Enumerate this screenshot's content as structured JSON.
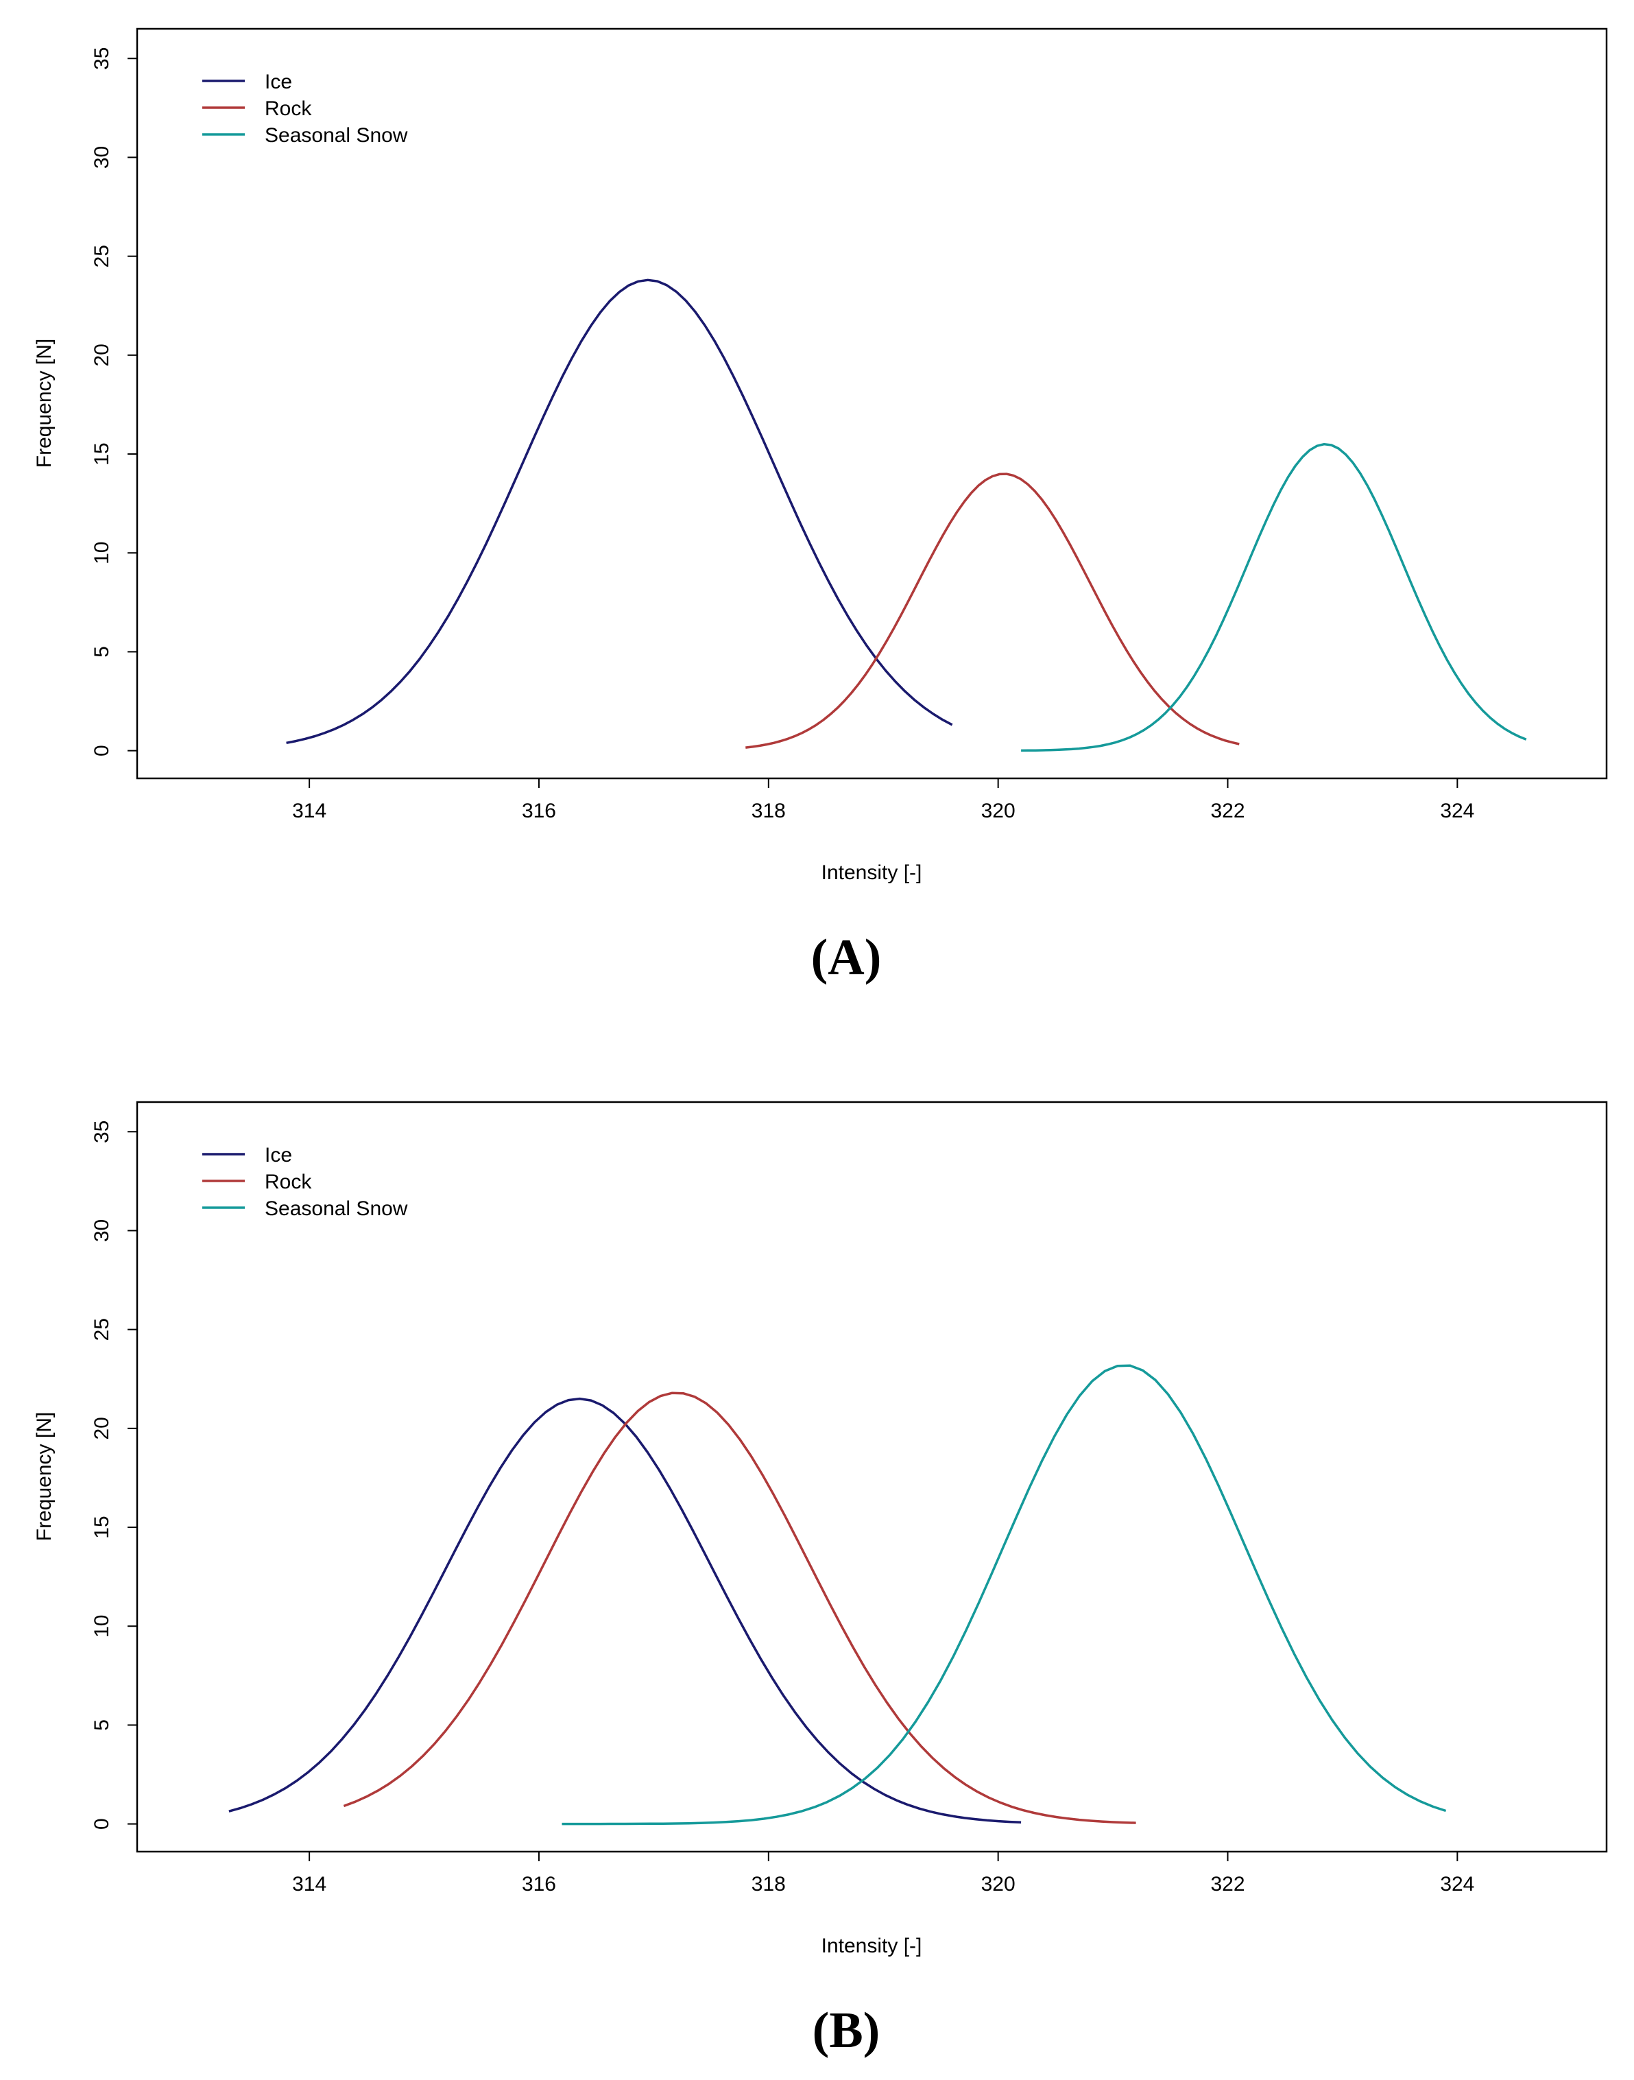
{
  "chart_data": [
    {
      "type": "line",
      "panel_label": "(A)",
      "xlabel": "Intensity [-]",
      "ylabel": "Frequency [N]",
      "xlim": [
        312.5,
        325.3
      ],
      "ylim": [
        -1.4,
        36.5
      ],
      "xticks": [
        314,
        316,
        318,
        320,
        322,
        324
      ],
      "xtick_labels": [
        "314",
        "316",
        "318",
        "320",
        "322",
        "324"
      ],
      "yticks": [
        0,
        5,
        10,
        15,
        20,
        25,
        30,
        35
      ],
      "ytick_labels": [
        "0",
        "5",
        "10",
        "15",
        "20",
        "25",
        "30",
        "35"
      ],
      "legend_position": "top-left",
      "series": [
        {
          "name": "Ice",
          "color": "#1a1a6e",
          "mean": 316.95,
          "sd": 1.1,
          "peak": 23.8,
          "xmin": 313.8,
          "xmax": 319.6
        },
        {
          "name": "Rock",
          "color": "#b03a3a",
          "mean": 320.05,
          "sd": 0.75,
          "peak": 14.0,
          "xmin": 317.8,
          "xmax": 322.1
        },
        {
          "name": "Seasonal Snow",
          "color": "#159a9a",
          "mean": 322.85,
          "sd": 0.68,
          "peak": 15.5,
          "xmin": 320.2,
          "xmax": 324.6
        }
      ]
    },
    {
      "type": "line",
      "panel_label": "(B)",
      "xlabel": "Intensity [-]",
      "ylabel": "Frequency [N]",
      "xlim": [
        312.5,
        325.3
      ],
      "ylim": [
        -1.4,
        36.5
      ],
      "xticks": [
        314,
        316,
        318,
        320,
        322,
        324
      ],
      "xtick_labels": [
        "314",
        "316",
        "318",
        "320",
        "322",
        "324"
      ],
      "yticks": [
        0,
        5,
        10,
        15,
        20,
        25,
        30,
        35
      ],
      "ytick_labels": [
        "0",
        "5",
        "10",
        "15",
        "20",
        "25",
        "30",
        "35"
      ],
      "legend_position": "top-left",
      "series": [
        {
          "name": "Ice",
          "color": "#1a1a6e",
          "mean": 316.35,
          "sd": 1.15,
          "peak": 21.5,
          "xmin": 313.3,
          "xmax": 320.2
        },
        {
          "name": "Rock",
          "color": "#b03a3a",
          "mean": 317.2,
          "sd": 1.15,
          "peak": 21.8,
          "xmin": 314.3,
          "xmax": 321.2
        },
        {
          "name": "Seasonal Snow",
          "color": "#159a9a",
          "mean": 321.1,
          "sd": 1.05,
          "peak": 23.2,
          "xmin": 316.2,
          "xmax": 323.9
        }
      ]
    }
  ]
}
